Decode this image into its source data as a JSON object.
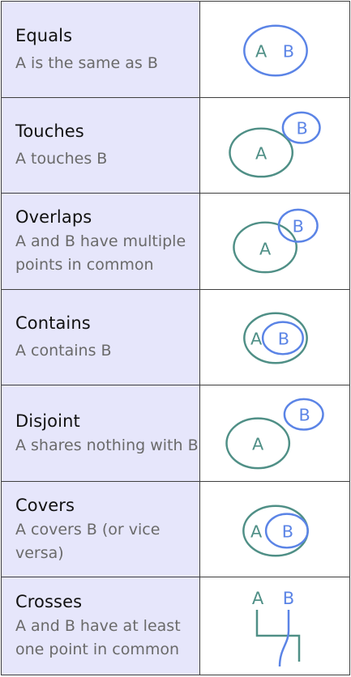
{
  "colors": {
    "a_shape": "#4f8f86",
    "b_shape": "#5b84e6",
    "label_panel": "#e6e6fb",
    "border": "#3f3f3f"
  },
  "rows": [
    {
      "title": "Equals",
      "description": "A is the same as B",
      "label_a": "A",
      "label_b": "B"
    },
    {
      "title": "Touches",
      "description": "A touches B",
      "label_a": "A",
      "label_b": "B"
    },
    {
      "title": "Overlaps",
      "description": "A and B have multiple points in common",
      "label_a": "A",
      "label_b": "B"
    },
    {
      "title": "Contains",
      "description": "A contains B",
      "label_a": "A",
      "label_b": "B"
    },
    {
      "title": "Disjoint",
      "description": "A shares nothing with B",
      "label_a": "A",
      "label_b": "B"
    },
    {
      "title": "Covers",
      "description": "A covers B (or vice versa)",
      "label_a": "A",
      "label_b": "B"
    },
    {
      "title": "Crosses",
      "description": "A and B have at least one point in common",
      "label_a": "A",
      "label_b": "B"
    }
  ]
}
